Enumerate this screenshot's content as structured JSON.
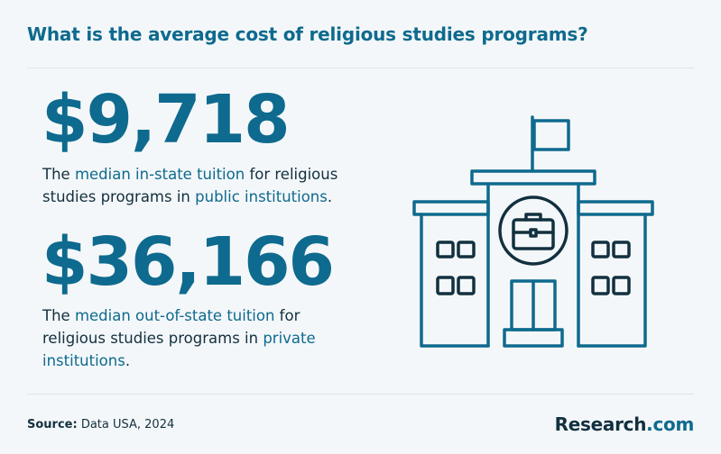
{
  "title": "What is the average cost of religious studies programs?",
  "stats": [
    {
      "value": "$9,718",
      "desc": {
        "part1": "The ",
        "hl1": "median in-state tuition",
        "part2": " for religious studies programs in ",
        "hl2": "public institutions",
        "part3": "."
      }
    },
    {
      "value": "$36,166",
      "desc": {
        "part1": "The ",
        "hl1": "median out-of-state tuition",
        "part2": " for religious studies programs in ",
        "hl2": "private institutions",
        "part3": "."
      }
    }
  ],
  "footer": {
    "source_label": "Source:",
    "source_text": " Data USA, 2024",
    "brand_name": "Research",
    "brand_tld": ".com"
  },
  "illustration": {
    "icon": "school-building-icon",
    "stroke_color": "#0e6a8e",
    "detail_color": "#12303f"
  },
  "colors": {
    "accent": "#0e6a8e",
    "text": "#12303f",
    "background": "#f4f7f9"
  }
}
